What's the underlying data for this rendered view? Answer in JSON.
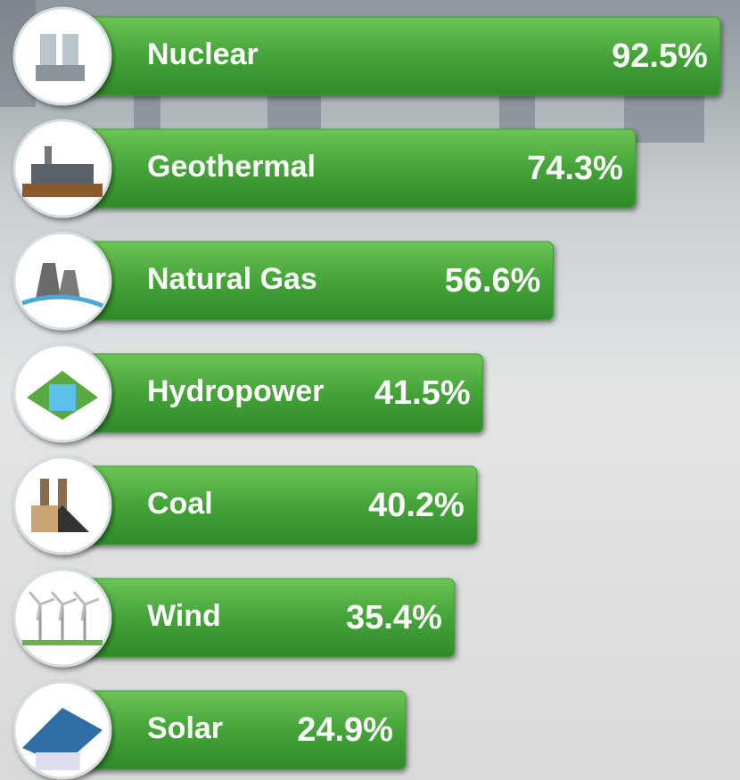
{
  "chart_data": {
    "type": "bar",
    "orientation": "horizontal",
    "categories": [
      "Nuclear",
      "Geothermal",
      "Natural Gas",
      "Hydropower",
      "Coal",
      "Wind",
      "Solar"
    ],
    "values": [
      92.5,
      74.3,
      56.6,
      41.5,
      40.2,
      35.4,
      24.9
    ],
    "value_labels": [
      "92.5%",
      "74.3%",
      "56.6%",
      "41.5%",
      "40.2%",
      "35.4%",
      "24.9%"
    ],
    "color": "#3f9e35"
  }
}
